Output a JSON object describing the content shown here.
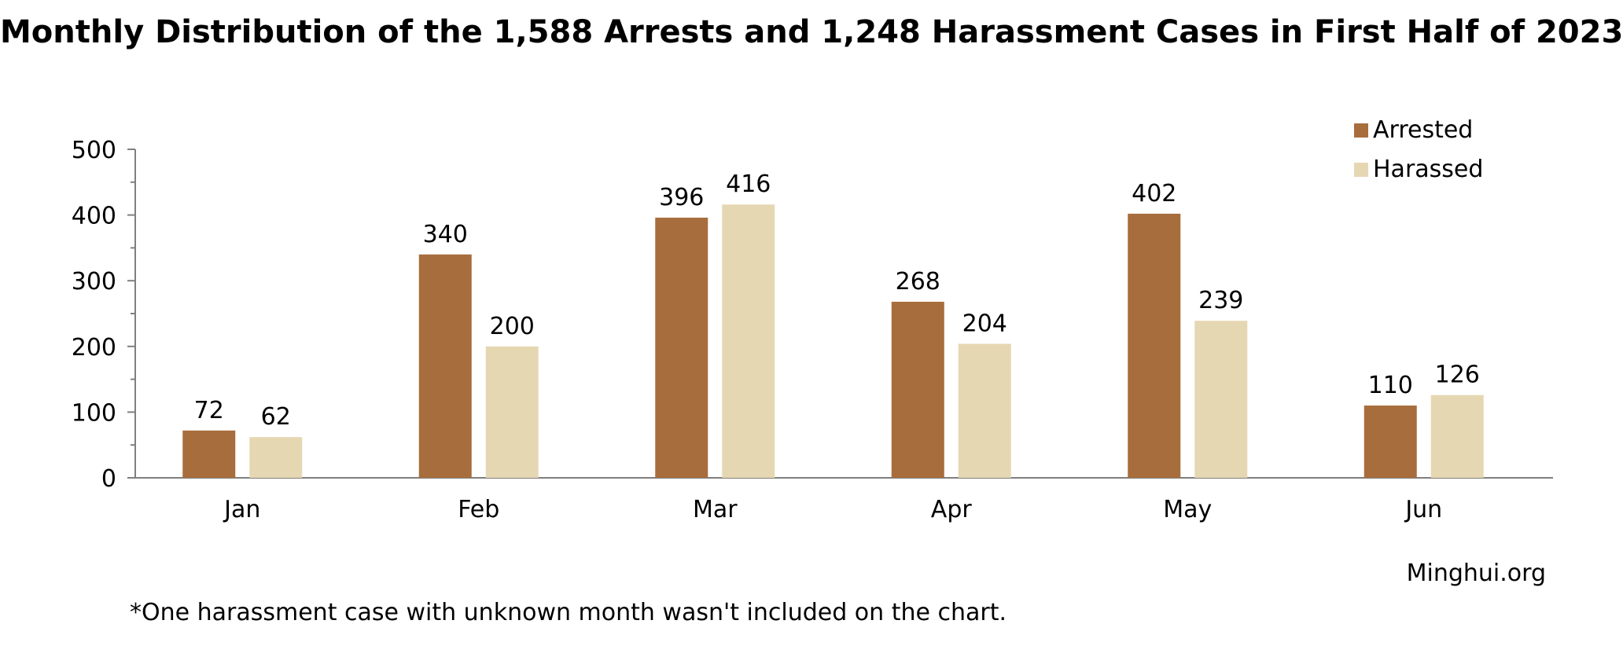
{
  "title": "Monthly Distribution of the 1,588 Arrests and 1,248 Harassment Cases in First Half of 2023",
  "source": "Minghui.org",
  "footnote": "*One harassment case with unknown month wasn't included on the chart.",
  "chart_data": {
    "type": "bar",
    "categories": [
      "Jan",
      "Feb",
      "Mar",
      "Apr",
      "May",
      "Jun"
    ],
    "series": [
      {
        "name": "Arrested",
        "color": "#a86d3c",
        "values": [
          72,
          340,
          396,
          268,
          402,
          110
        ]
      },
      {
        "name": "Harassed",
        "color": "#e6d7b3",
        "values": [
          62,
          200,
          416,
          204,
          239,
          126
        ]
      }
    ],
    "ylim": [
      0,
      500
    ],
    "yticks": [
      0,
      100,
      200,
      300,
      400,
      500
    ],
    "xlabel": "",
    "ylabel": "",
    "legend_position": "top-right",
    "grid": false
  }
}
